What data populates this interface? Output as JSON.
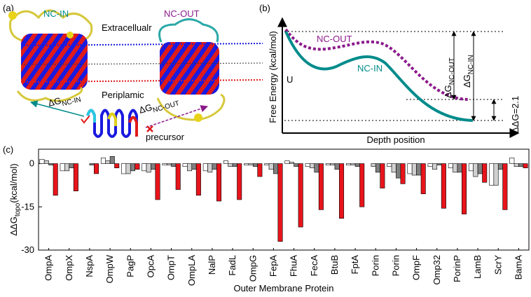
{
  "panel_a": {
    "label": "(a)",
    "nc_in": "NC-IN",
    "nc_out": "NC-OUT",
    "extracellular": "Extracellualr",
    "periplasmic": "Periplamic",
    "dg_in": {
      "main": "ΔG",
      "sub": "NC-IN"
    },
    "dg_out": {
      "main": "ΔG",
      "sub": "NC-OUT"
    },
    "precursor": "precursor"
  },
  "panel_b": {
    "label": "(b)",
    "ylabel": "Free Energy (kcal/mol)",
    "xlabel": "Depth position",
    "nc_out": "NC-OUT",
    "nc_in": "NC-IN",
    "u": "U",
    "dg_out": {
      "main": "ΔG",
      "sub": "NC-OUT"
    },
    "dg_in": {
      "main": "ΔG",
      "sub": "NC-IN"
    },
    "ddg": "ΔΔG=2.1"
  },
  "chart_data": {
    "type": "bar",
    "label": "(c)",
    "ylabel": {
      "main": "ΔΔG",
      "sub": "topo",
      "unit": "(kcal/mol)"
    },
    "xlabel": "Outer Membrane Protein",
    "categories": [
      "OmpA",
      "OmpX",
      "NspA",
      "OmpW",
      "PagP",
      "OpcA",
      "OmpT",
      "OmpLA",
      "NalP",
      "FadL",
      "OmpG",
      "FepA",
      "FhuA",
      "FecA",
      "BtuB",
      "FptA",
      "Porin",
      "Porin",
      "OmpF",
      "Omp32",
      "PorinP",
      "LamB",
      "ScrY",
      "BamA"
    ],
    "series": [
      {
        "color": "#ffffff",
        "values": [
          1.5,
          -2.5,
          0,
          2,
          -3.5,
          -2.5,
          -0.5,
          -1,
          -2.5,
          1,
          -0.5,
          -0.5,
          1,
          -1,
          -0.5,
          -0.5,
          0,
          -1,
          -3.5,
          -1,
          -1.5,
          -2.5,
          -7.5,
          2
        ]
      },
      {
        "color": "#d0d0d0",
        "values": [
          1,
          -2.5,
          0,
          1,
          -3.5,
          -3,
          -0.5,
          -2.5,
          -3,
          -1,
          -0.5,
          -2,
          0.5,
          -1.5,
          -0.5,
          -0.5,
          -1,
          -3,
          -4,
          -2,
          -3,
          -4.5,
          -7.5,
          -1
        ]
      },
      {
        "color": "#808080",
        "values": [
          -0.5,
          -1.5,
          -0.5,
          2.5,
          -2.5,
          -2,
          -1,
          -2,
          -2,
          -1,
          -1,
          -3.5,
          -1,
          -3,
          -2,
          -1,
          -3,
          -5,
          -4,
          -0.5,
          -3,
          -3.5,
          -2,
          -1
        ]
      },
      {
        "color": "#e8141b",
        "values": [
          -11,
          -9.5,
          -3.5,
          -1.5,
          -2,
          -12.5,
          -9,
          -11,
          -13,
          -12.5,
          -4.5,
          -27,
          -22,
          -16,
          -19,
          -15,
          -8.5,
          -7,
          -10.5,
          -15.5,
          -17.5,
          -6.5,
          -16,
          -1.5
        ]
      }
    ],
    "ylim": [
      -30,
      5
    ],
    "yticks": [
      0,
      -15,
      -30
    ],
    "grid": false
  }
}
